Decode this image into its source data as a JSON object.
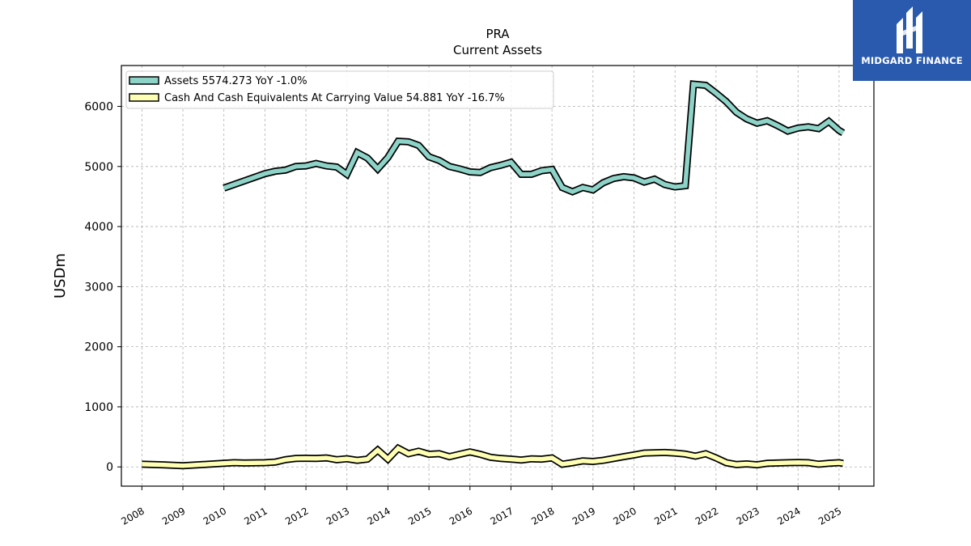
{
  "brand": {
    "name": "MIDGARD FINANCE",
    "bg_color": "#2a5aad"
  },
  "chart_data": {
    "type": "line",
    "title": "PRA",
    "subtitle": "Current  Assets",
    "xlabel": "",
    "ylabel": "USDm",
    "xlim": [
      2007.5,
      2025.85
    ],
    "ylim": [
      -320,
      6680
    ],
    "grid": true,
    "legend_position": "top-left",
    "x_ticks": [
      "2008",
      "2009",
      "2010",
      "2011",
      "2012",
      "2013",
      "2014",
      "2015",
      "2016",
      "2017",
      "2018",
      "2019",
      "2020",
      "2021",
      "2022",
      "2023",
      "2024",
      "2025"
    ],
    "y_ticks": [
      "0",
      "1000",
      "2000",
      "3000",
      "4000",
      "5000",
      "6000"
    ],
    "series": [
      {
        "name": "Assets  5574.273 YoY -1.0%",
        "color": "#8dd3c7",
        "points": [
          [
            2010.0,
            4640
          ],
          [
            2010.5,
            4760
          ],
          [
            2011.0,
            4880
          ],
          [
            2011.25,
            4920
          ],
          [
            2011.5,
            4940
          ],
          [
            2011.75,
            5000
          ],
          [
            2012.0,
            5010
          ],
          [
            2012.25,
            5050
          ],
          [
            2012.5,
            5010
          ],
          [
            2012.75,
            4990
          ],
          [
            2013.0,
            4870
          ],
          [
            2013.25,
            5230
          ],
          [
            2013.5,
            5140
          ],
          [
            2013.75,
            4960
          ],
          [
            2014.0,
            5150
          ],
          [
            2014.25,
            5420
          ],
          [
            2014.5,
            5410
          ],
          [
            2014.75,
            5350
          ],
          [
            2015.0,
            5160
          ],
          [
            2015.25,
            5100
          ],
          [
            2015.5,
            5000
          ],
          [
            2015.75,
            4960
          ],
          [
            2016.0,
            4910
          ],
          [
            2016.25,
            4900
          ],
          [
            2016.5,
            4980
          ],
          [
            2016.75,
            5020
          ],
          [
            2017.0,
            5070
          ],
          [
            2017.25,
            4870
          ],
          [
            2017.5,
            4870
          ],
          [
            2017.75,
            4930
          ],
          [
            2018.0,
            4950
          ],
          [
            2018.25,
            4650
          ],
          [
            2018.5,
            4580
          ],
          [
            2018.75,
            4650
          ],
          [
            2019.0,
            4610
          ],
          [
            2019.25,
            4730
          ],
          [
            2019.5,
            4800
          ],
          [
            2019.75,
            4830
          ],
          [
            2020.0,
            4810
          ],
          [
            2020.25,
            4740
          ],
          [
            2020.5,
            4790
          ],
          [
            2020.75,
            4700
          ],
          [
            2021.0,
            4660
          ],
          [
            2021.25,
            4680
          ],
          [
            2021.45,
            6370
          ],
          [
            2021.75,
            6350
          ],
          [
            2022.0,
            6220
          ],
          [
            2022.25,
            6080
          ],
          [
            2022.5,
            5900
          ],
          [
            2022.75,
            5790
          ],
          [
            2023.0,
            5720
          ],
          [
            2023.25,
            5760
          ],
          [
            2023.5,
            5680
          ],
          [
            2023.75,
            5590
          ],
          [
            2024.0,
            5640
          ],
          [
            2024.25,
            5660
          ],
          [
            2024.5,
            5630
          ],
          [
            2024.75,
            5750
          ],
          [
            2025.0,
            5600
          ],
          [
            2025.1,
            5560
          ]
        ]
      },
      {
        "name": "Cash And Cash Equivalents At Carrying Value  54.881 YoY -16.7%",
        "color": "#ffffb3",
        "points": [
          [
            2008.0,
            45
          ],
          [
            2008.5,
            35
          ],
          [
            2009.0,
            20
          ],
          [
            2009.5,
            40
          ],
          [
            2010.0,
            60
          ],
          [
            2010.25,
            70
          ],
          [
            2010.5,
            65
          ],
          [
            2011.0,
            70
          ],
          [
            2011.25,
            80
          ],
          [
            2011.5,
            120
          ],
          [
            2011.75,
            140
          ],
          [
            2012.0,
            145
          ],
          [
            2012.25,
            140
          ],
          [
            2012.5,
            150
          ],
          [
            2012.75,
            120
          ],
          [
            2013.0,
            135
          ],
          [
            2013.25,
            110
          ],
          [
            2013.5,
            130
          ],
          [
            2013.75,
            280
          ],
          [
            2014.0,
            130
          ],
          [
            2014.25,
            310
          ],
          [
            2014.5,
            220
          ],
          [
            2014.75,
            260
          ],
          [
            2015.0,
            210
          ],
          [
            2015.25,
            220
          ],
          [
            2015.5,
            170
          ],
          [
            2015.75,
            210
          ],
          [
            2016.0,
            250
          ],
          [
            2016.25,
            210
          ],
          [
            2016.5,
            160
          ],
          [
            2016.75,
            140
          ],
          [
            2017.0,
            130
          ],
          [
            2017.25,
            115
          ],
          [
            2017.5,
            135
          ],
          [
            2017.75,
            130
          ],
          [
            2018.0,
            150
          ],
          [
            2018.25,
            45
          ],
          [
            2018.5,
            70
          ],
          [
            2018.75,
            100
          ],
          [
            2019.0,
            90
          ],
          [
            2019.25,
            110
          ],
          [
            2019.5,
            140
          ],
          [
            2019.75,
            170
          ],
          [
            2020.0,
            200
          ],
          [
            2020.25,
            230
          ],
          [
            2020.5,
            235
          ],
          [
            2020.75,
            240
          ],
          [
            2021.0,
            230
          ],
          [
            2021.25,
            215
          ],
          [
            2021.5,
            180
          ],
          [
            2021.75,
            220
          ],
          [
            2022.0,
            150
          ],
          [
            2022.25,
            70
          ],
          [
            2022.5,
            40
          ],
          [
            2022.75,
            50
          ],
          [
            2023.0,
            35
          ],
          [
            2023.25,
            60
          ],
          [
            2023.5,
            65
          ],
          [
            2023.75,
            70
          ],
          [
            2024.0,
            75
          ],
          [
            2024.25,
            70
          ],
          [
            2024.5,
            45
          ],
          [
            2024.75,
            60
          ],
          [
            2025.0,
            70
          ],
          [
            2025.1,
            60
          ]
        ]
      }
    ]
  }
}
